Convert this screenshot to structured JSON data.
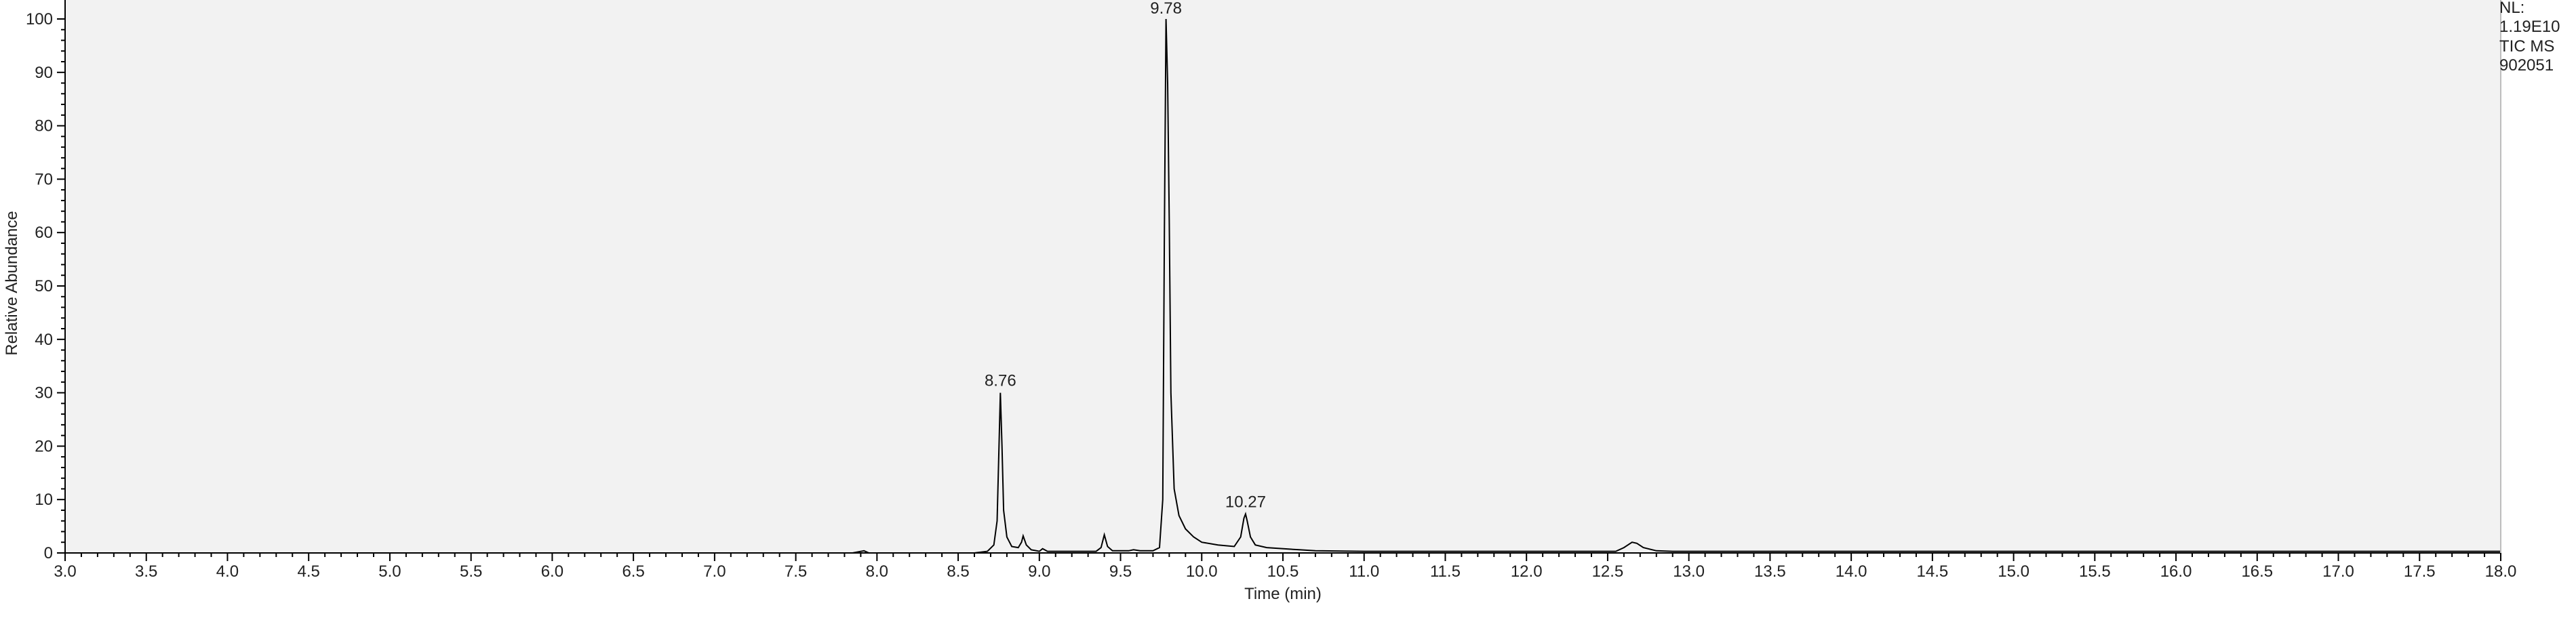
{
  "chart_data": {
    "type": "line",
    "xlabel": "Time (min)",
    "ylabel": "Relative Abundance",
    "xlim": [
      3.0,
      18.0
    ],
    "ylim": [
      0,
      100
    ],
    "x_ticks": [
      "3.0",
      "3.5",
      "4.0",
      "4.5",
      "5.0",
      "5.5",
      "6.0",
      "6.5",
      "7.0",
      "7.5",
      "8.0",
      "8.5",
      "9.0",
      "9.5",
      "10.0",
      "10.5",
      "11.0",
      "11.5",
      "12.0",
      "12.5",
      "13.0",
      "13.5",
      "14.0",
      "14.5",
      "15.0",
      "15.5",
      "16.0",
      "16.5",
      "17.0",
      "17.5",
      "18.0"
    ],
    "y_ticks": [
      "0",
      "10",
      "20",
      "30",
      "40",
      "50",
      "60",
      "70",
      "80",
      "90",
      "100"
    ],
    "grid": false,
    "colors": {
      "plot_bg": "#f2f2f2",
      "trace": "#000000",
      "axis": "#000000"
    },
    "series": [
      {
        "x": [
          3.0,
          7.85,
          7.92,
          7.95,
          8.0,
          8.6,
          8.68,
          8.72,
          8.74,
          8.75,
          8.76,
          8.77,
          8.78,
          8.8,
          8.83,
          8.87,
          8.89,
          8.9,
          8.92,
          8.95,
          9.0,
          9.02,
          9.05,
          9.35,
          9.38,
          9.4,
          9.42,
          9.45,
          9.55,
          9.58,
          9.62,
          9.7,
          9.74,
          9.76,
          9.77,
          9.78,
          9.79,
          9.8,
          9.81,
          9.83,
          9.86,
          9.9,
          9.95,
          10.0,
          10.1,
          10.2,
          10.24,
          10.26,
          10.27,
          10.28,
          10.3,
          10.33,
          10.4,
          10.6,
          10.7,
          11.0,
          12.55,
          12.6,
          12.65,
          12.68,
          12.72,
          12.8,
          12.9,
          18.0
        ],
        "y": [
          0,
          0,
          0.4,
          0,
          0,
          0,
          0.3,
          1.5,
          6,
          18,
          30,
          20,
          8,
          3,
          1.2,
          1,
          2,
          3.2,
          1.5,
          0.6,
          0.3,
          0.8,
          0.3,
          0.3,
          1,
          3.4,
          1.2,
          0.4,
          0.4,
          0.6,
          0.4,
          0.4,
          1,
          10,
          60,
          100,
          88,
          62,
          30,
          12,
          7,
          4.5,
          3,
          2,
          1.5,
          1.2,
          3,
          6.5,
          7.3,
          6,
          3,
          1.5,
          1,
          0.6,
          0.4,
          0.3,
          0.3,
          1,
          2,
          1.8,
          1,
          0.4,
          0.3,
          0.3
        ]
      }
    ],
    "annotations": [
      {
        "label": "8.76",
        "x": 8.76,
        "y": 30
      },
      {
        "label": "9.78",
        "x": 9.78,
        "y": 100
      },
      {
        "label": "10.27",
        "x": 10.27,
        "y": 7.3
      }
    ]
  },
  "info": {
    "nl_label": "NL:",
    "nl_value": "1.19E10",
    "scan_filter": "TIC  MS",
    "sample_id": "902051"
  }
}
